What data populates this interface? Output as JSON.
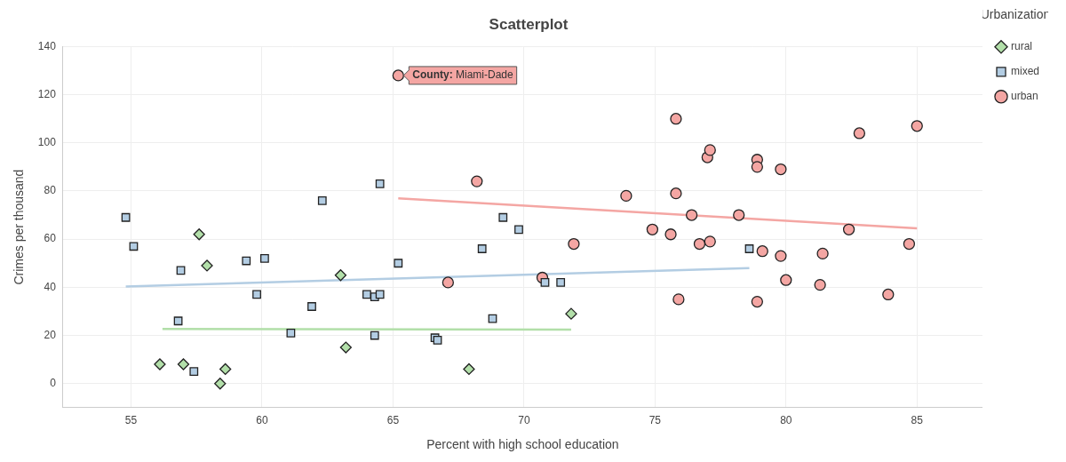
{
  "chart_data": {
    "type": "scatter",
    "title": "Scatterplot",
    "x_label": "Percent with high school education",
    "y_label": "Crimes per thousand",
    "legend_title": "Urbanization",
    "legend": "top-right",
    "grid": true,
    "xlim": [
      52.4,
      87.5
    ],
    "xticks": [
      55,
      60,
      65,
      70,
      75,
      80,
      85
    ],
    "ylim": [
      -10,
      140
    ],
    "yticks": [
      0,
      20,
      40,
      60,
      80,
      100,
      120,
      140
    ],
    "annotation": {
      "label": "County:",
      "text": "Miami-Dade",
      "x": 65.2,
      "y": 128
    },
    "series": [
      {
        "name": "rural",
        "color": "#b2dfa9",
        "marker": "diamond",
        "x": [
          56.1,
          57.6,
          57.9,
          57.0,
          58.4,
          58.6,
          63.0,
          63.2,
          67.9,
          71.8
        ],
        "values": [
          8,
          62,
          49,
          8,
          0,
          6,
          45,
          15,
          6,
          29
        ],
        "trend": {
          "x": [
            56.2,
            71.8
          ],
          "values": [
            22.7,
            22.4
          ]
        }
      },
      {
        "name": "mixed",
        "color": "#b3cde3",
        "marker": "square",
        "x": [
          54.8,
          55.1,
          56.8,
          56.9,
          57.4,
          59.4,
          59.8,
          60.1,
          61.1,
          61.9,
          62.3,
          64.0,
          64.3,
          64.3,
          64.5,
          64.5,
          65.2,
          66.6,
          66.7,
          68.4,
          68.8,
          69.2,
          69.8,
          70.8,
          71.4,
          78.6
        ],
        "values": [
          69,
          57,
          26,
          47,
          5,
          51,
          37,
          52,
          21,
          32,
          76,
          37,
          36,
          20,
          37,
          83,
          50,
          19,
          18,
          56,
          27,
          69,
          64,
          42,
          42,
          56
        ],
        "trend": {
          "x": [
            54.8,
            78.6
          ],
          "values": [
            40.3,
            48.0
          ]
        }
      },
      {
        "name": "urban",
        "color": "#f4a6a3",
        "marker": "circle",
        "x": [
          65.2,
          67.1,
          68.2,
          70.7,
          71.9,
          73.9,
          74.9,
          75.6,
          75.8,
          75.8,
          75.9,
          76.4,
          76.7,
          77.0,
          77.1,
          77.1,
          78.2,
          78.9,
          78.9,
          78.9,
          79.1,
          79.8,
          79.8,
          80.0,
          81.3,
          81.4,
          82.4,
          82.8,
          83.9,
          84.7,
          85.0
        ],
        "values": [
          128,
          42,
          84,
          44,
          58,
          78,
          64,
          62,
          110,
          79,
          35,
          70,
          58,
          94,
          97,
          59,
          70,
          34,
          93,
          90,
          55,
          53,
          89,
          43,
          41,
          54,
          64,
          104,
          37,
          58,
          107
        ],
        "trend": {
          "x": [
            65.2,
            85.0
          ],
          "values": [
            76.9,
            64.5
          ]
        }
      }
    ]
  }
}
